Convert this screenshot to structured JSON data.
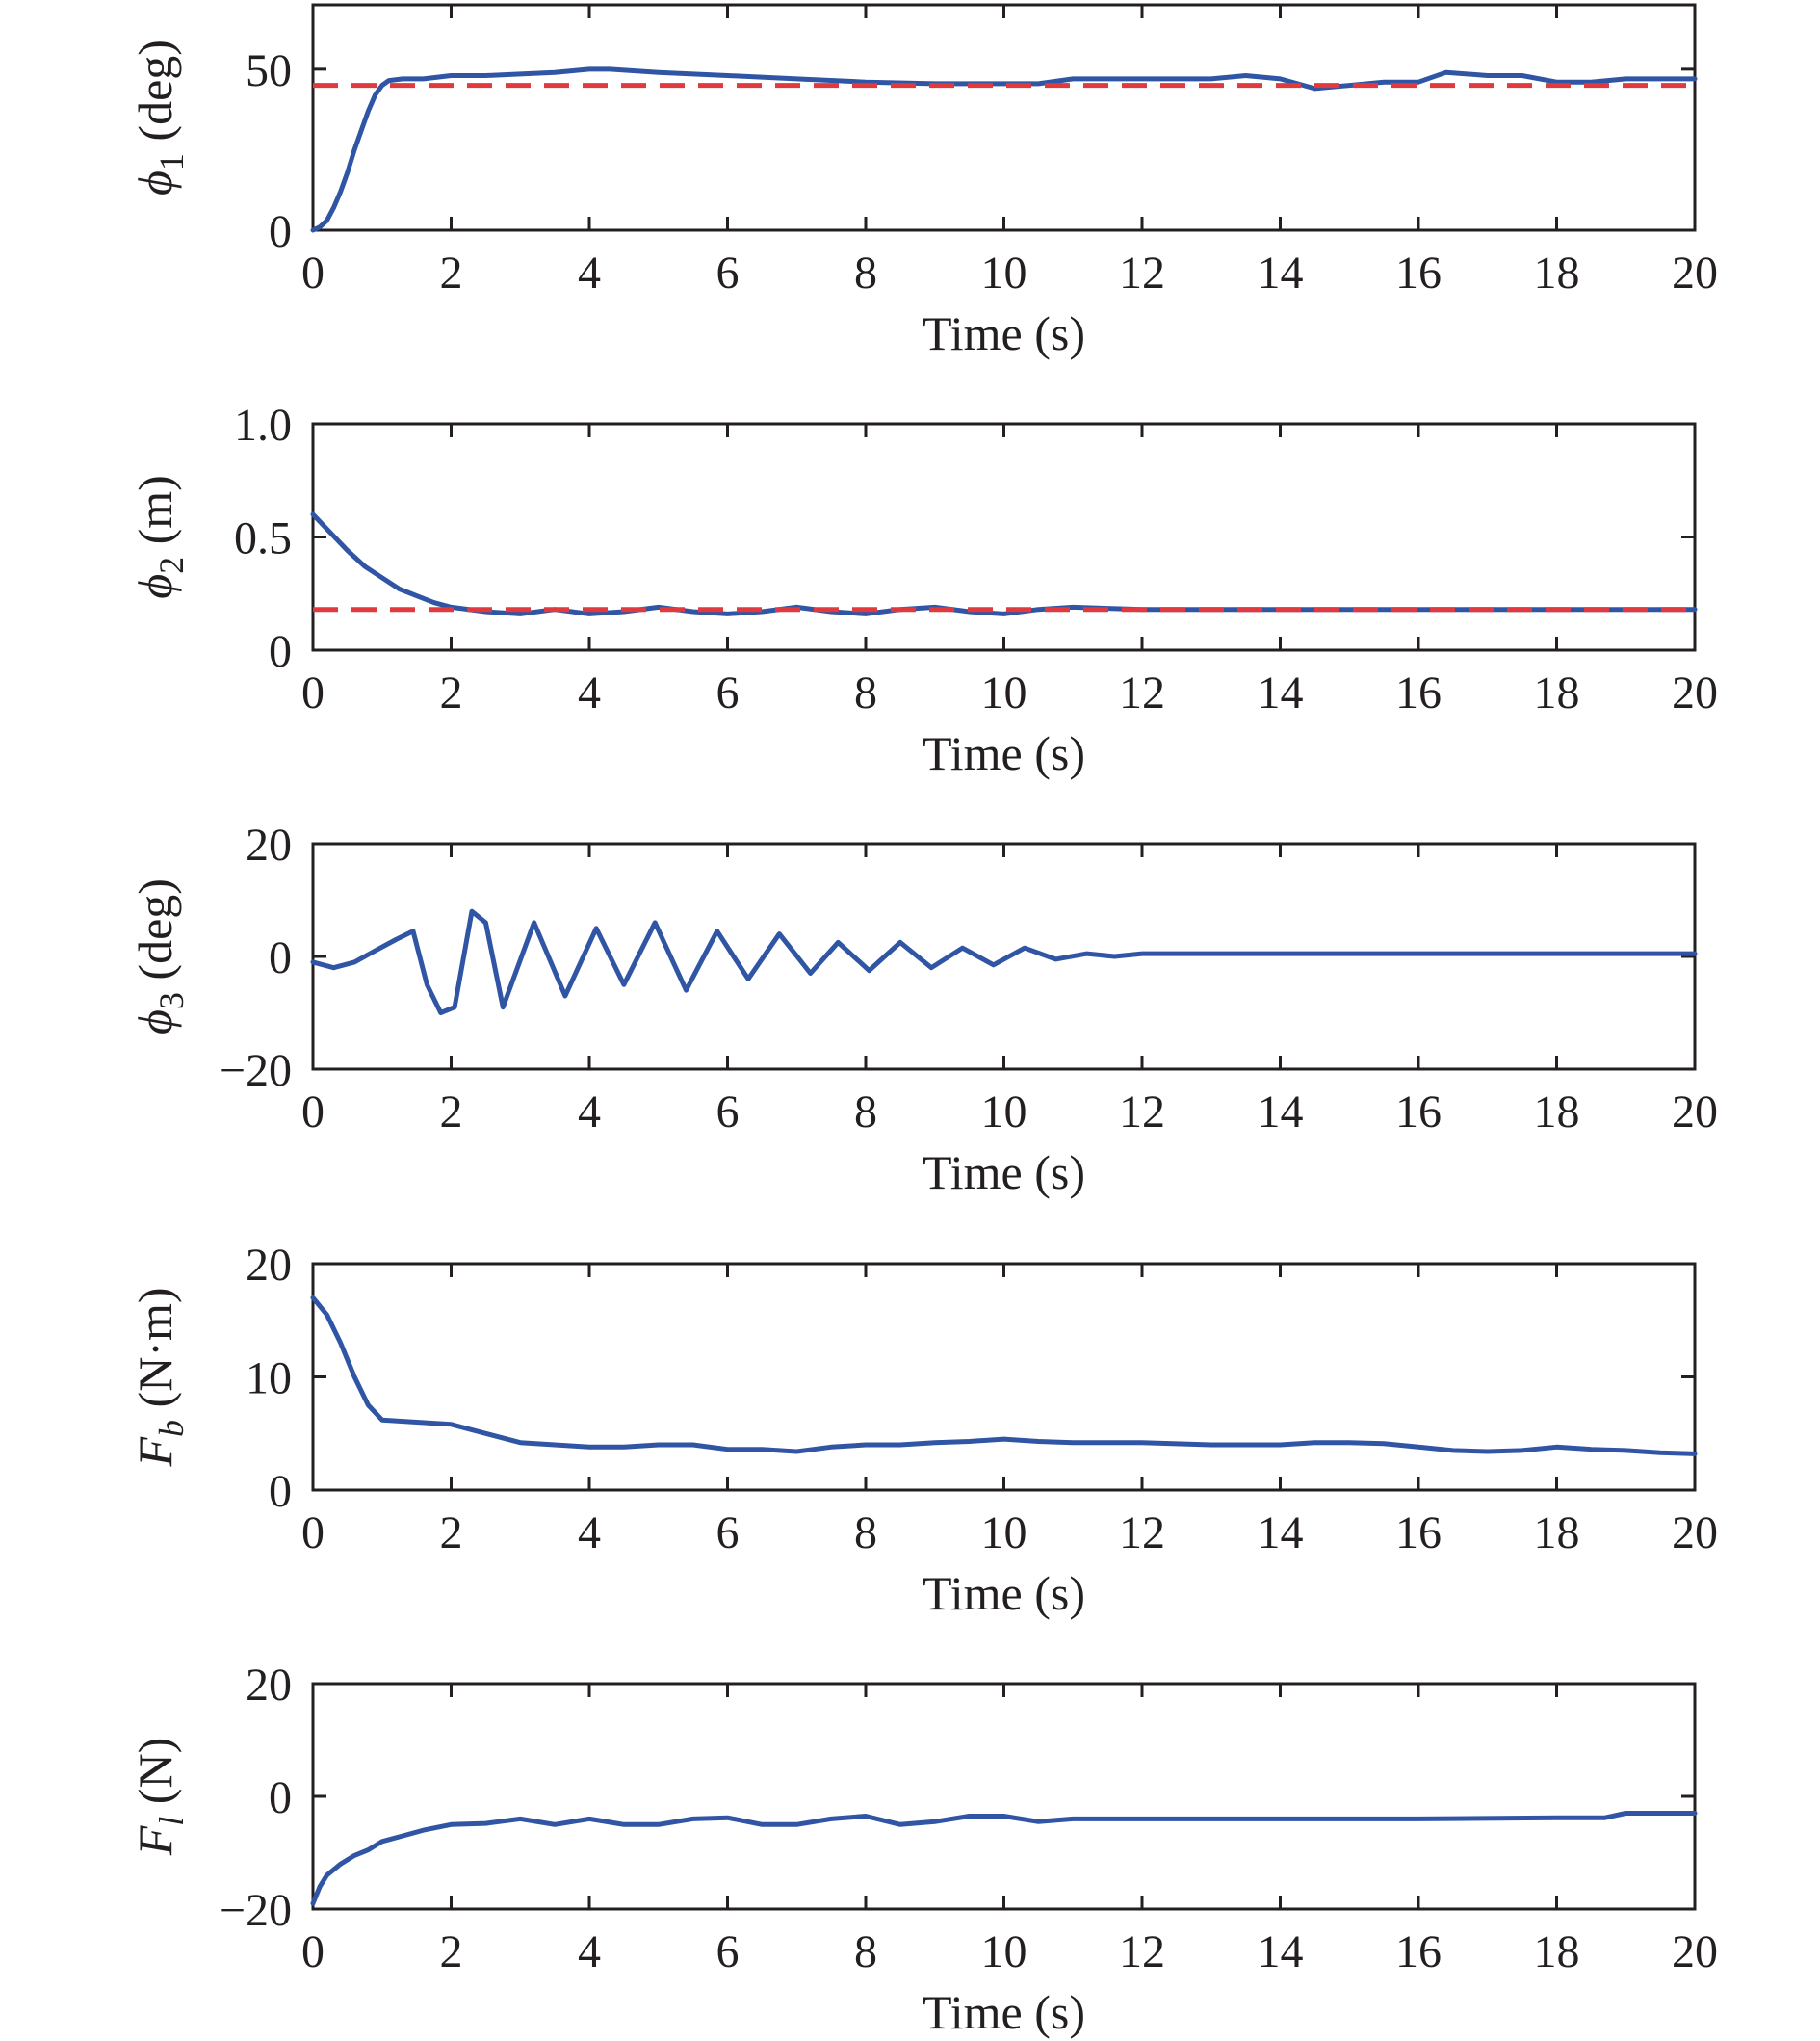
{
  "colors": {
    "measured": "#2f55a4",
    "reference": "#e0393e",
    "axes": "#231f20"
  },
  "chart_data": [
    {
      "type": "line",
      "xlabel": "Time (s)",
      "ylabel": {
        "symbol": "ϕ",
        "sub": "1",
        "unit": " (deg)"
      },
      "xlim": [
        0,
        20
      ],
      "ylim": [
        0,
        70
      ],
      "xticks": [
        "0",
        "2",
        "4",
        "6",
        "8",
        "10",
        "12",
        "14",
        "16",
        "18",
        "20"
      ],
      "yticks": [
        {
          "v": 0,
          "label": "0"
        },
        {
          "v": 50,
          "label": "50"
        }
      ],
      "reference": 45,
      "series": [
        {
          "x": [
            0,
            0.1,
            0.2,
            0.3,
            0.4,
            0.5,
            0.6,
            0.7,
            0.8,
            0.9,
            1.0,
            1.1,
            1.3,
            1.6,
            2,
            2.5,
            3,
            3.5,
            4,
            4.3,
            5,
            6,
            7,
            8,
            9,
            10,
            10.5,
            11,
            12,
            13,
            13.5,
            14,
            14.5,
            15,
            15.5,
            16,
            16.4,
            17,
            17.5,
            18,
            18.5,
            19,
            20
          ],
          "y": [
            0,
            1,
            3,
            7,
            12,
            18,
            25,
            31,
            37,
            42,
            45,
            46.5,
            47,
            47,
            48,
            48,
            48.5,
            49,
            50,
            50,
            49,
            48,
            47,
            46,
            45.5,
            45.5,
            45.5,
            47,
            47,
            47,
            48,
            47,
            44,
            45,
            46,
            46,
            49,
            48,
            48,
            46,
            46,
            47,
            47
          ]
        }
      ]
    },
    {
      "type": "line",
      "xlabel": "Time (s)",
      "ylabel": {
        "symbol": "ϕ",
        "sub": "2",
        "unit": " (m)"
      },
      "xlim": [
        0,
        20
      ],
      "ylim": [
        0,
        1
      ],
      "xticks": [
        "0",
        "2",
        "4",
        "6",
        "8",
        "10",
        "12",
        "14",
        "16",
        "18",
        "20"
      ],
      "yticks": [
        {
          "v": 0,
          "label": "0"
        },
        {
          "v": 0.5,
          "label": "0.5"
        },
        {
          "v": 1,
          "label": "1.0"
        }
      ],
      "reference": 0.18,
      "series": [
        {
          "x": [
            0,
            0.25,
            0.5,
            0.75,
            1,
            1.25,
            1.5,
            1.75,
            2,
            2.5,
            3,
            3.5,
            4,
            4.5,
            5,
            5.5,
            6,
            6.5,
            7,
            7.5,
            8,
            8.5,
            9,
            9.5,
            10,
            10.5,
            11,
            12,
            14,
            16,
            18,
            20
          ],
          "y": [
            0.6,
            0.52,
            0.44,
            0.37,
            0.32,
            0.27,
            0.24,
            0.21,
            0.19,
            0.17,
            0.16,
            0.18,
            0.16,
            0.17,
            0.19,
            0.17,
            0.16,
            0.17,
            0.19,
            0.17,
            0.16,
            0.18,
            0.19,
            0.17,
            0.16,
            0.18,
            0.19,
            0.18,
            0.18,
            0.18,
            0.18,
            0.18
          ]
        }
      ]
    },
    {
      "type": "line",
      "xlabel": "Time (s)",
      "ylabel": {
        "symbol": "ϕ",
        "sub": "3",
        "unit": " (deg)"
      },
      "xlim": [
        0,
        20
      ],
      "ylim": [
        -20,
        20
      ],
      "xticks": [
        "0",
        "2",
        "4",
        "6",
        "8",
        "10",
        "12",
        "14",
        "16",
        "18",
        "20"
      ],
      "yticks": [
        {
          "v": -20,
          "label": "−20"
        },
        {
          "v": 0,
          "label": "0"
        },
        {
          "v": 20,
          "label": "20"
        }
      ],
      "series": [
        {
          "x": [
            0,
            0.3,
            0.6,
            0.9,
            1.2,
            1.45,
            1.65,
            1.85,
            2.05,
            2.3,
            2.5,
            2.75,
            3.2,
            3.65,
            4.1,
            4.5,
            4.95,
            5.4,
            5.85,
            6.3,
            6.75,
            7.2,
            7.6,
            8.05,
            8.5,
            8.95,
            9.4,
            9.85,
            10.3,
            10.75,
            11.2,
            11.6,
            12,
            12.5,
            14,
            16,
            18,
            20
          ],
          "y": [
            -1,
            -2,
            -1,
            1,
            3,
            4.5,
            -5,
            -10,
            -9,
            8,
            6,
            -9,
            6,
            -7,
            5,
            -5,
            6,
            -6,
            4.5,
            -4,
            4,
            -3,
            2.5,
            -2.5,
            2.5,
            -2,
            1.5,
            -1.5,
            1.5,
            -0.5,
            0.5,
            0,
            0.5,
            0.5,
            0.5,
            0.5,
            0.5,
            0.5
          ]
        }
      ]
    },
    {
      "type": "line",
      "xlabel": "Time (s)",
      "ylabel": {
        "symbol": "F",
        "sub": "b",
        "unit": " (N·m)"
      },
      "xlim": [
        0,
        20
      ],
      "ylim": [
        0,
        20
      ],
      "xticks": [
        "0",
        "2",
        "4",
        "6",
        "8",
        "10",
        "12",
        "14",
        "16",
        "18",
        "20"
      ],
      "yticks": [
        {
          "v": 0,
          "label": "0"
        },
        {
          "v": 10,
          "label": "10"
        },
        {
          "v": 20,
          "label": "20"
        }
      ],
      "series": [
        {
          "x": [
            0,
            0.2,
            0.4,
            0.6,
            0.8,
            1,
            1.5,
            2,
            2.5,
            3,
            3.5,
            4,
            4.5,
            5,
            5.5,
            6,
            6.5,
            7,
            7.5,
            8,
            8.5,
            9,
            9.5,
            10,
            10.5,
            11,
            12,
            13,
            14,
            14.5,
            15,
            15.5,
            16,
            16.5,
            17,
            17.5,
            18,
            18.5,
            19,
            19.5,
            20
          ],
          "y": [
            17,
            15.5,
            13,
            10,
            7.5,
            6.2,
            6,
            5.8,
            5,
            4.2,
            4,
            3.8,
            3.8,
            4,
            4,
            3.6,
            3.6,
            3.4,
            3.8,
            4,
            4,
            4.2,
            4.3,
            4.5,
            4.3,
            4.2,
            4.2,
            4,
            4,
            4.2,
            4.2,
            4.1,
            3.8,
            3.5,
            3.4,
            3.5,
            3.8,
            3.6,
            3.5,
            3.3,
            3.2
          ]
        }
      ]
    },
    {
      "type": "line",
      "xlabel": "Time (s)",
      "ylabel": {
        "symbol": "F",
        "sub": "l",
        "unit": " (N)"
      },
      "xlim": [
        0,
        20
      ],
      "ylim": [
        -20,
        20
      ],
      "xticks": [
        "0",
        "2",
        "4",
        "6",
        "8",
        "10",
        "12",
        "14",
        "16",
        "18",
        "20"
      ],
      "yticks": [
        {
          "v": -20,
          "label": "−20"
        },
        {
          "v": 0,
          "label": "0"
        },
        {
          "v": 20,
          "label": "20"
        }
      ],
      "series": [
        {
          "x": [
            0,
            0.1,
            0.2,
            0.4,
            0.6,
            0.8,
            1,
            1.3,
            1.6,
            2,
            2.5,
            3,
            3.5,
            4,
            4.5,
            5,
            5.5,
            6,
            6.5,
            7,
            7.5,
            8,
            8.5,
            9,
            9.5,
            10,
            10.5,
            11,
            12,
            13,
            14,
            16,
            18,
            18.7,
            19,
            20
          ],
          "y": [
            -19,
            -16,
            -14,
            -12,
            -10.5,
            -9.5,
            -8,
            -7,
            -6,
            -5,
            -4.8,
            -4,
            -5,
            -4,
            -5,
            -5,
            -4,
            -3.8,
            -5,
            -5,
            -4,
            -3.5,
            -5,
            -4.5,
            -3.5,
            -3.5,
            -4.5,
            -4,
            -4,
            -4,
            -4,
            -4,
            -3.8,
            -3.8,
            -3,
            -3
          ]
        }
      ]
    }
  ]
}
